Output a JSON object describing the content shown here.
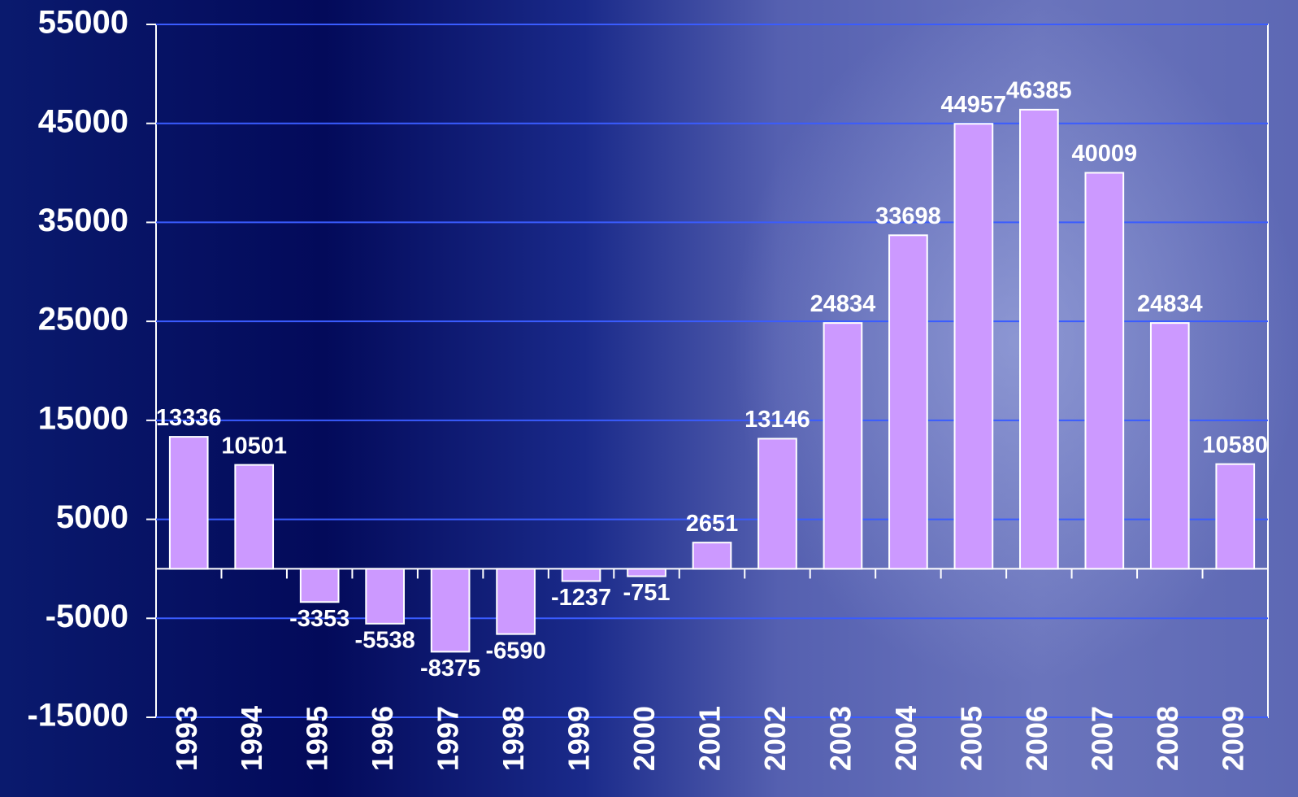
{
  "chart_data": {
    "type": "bar",
    "categories": [
      "1993",
      "1994",
      "1995",
      "1996",
      "1997",
      "1998",
      "1999",
      "2000",
      "2001",
      "2002",
      "2003",
      "2004",
      "2005",
      "2006",
      "2007",
      "2008",
      "2009"
    ],
    "values": [
      13336,
      10501,
      -3353,
      -5538,
      -8375,
      -6590,
      -1237,
      -751,
      2651,
      13146,
      24834,
      33698,
      44957,
      46385,
      40009,
      24834,
      10580
    ],
    "color": "#cc99ff",
    "ylim": [
      -15000,
      55000
    ],
    "yticks": [
      -15000,
      -5000,
      5000,
      15000,
      25000,
      35000,
      45000,
      55000
    ],
    "grid": true
  }
}
